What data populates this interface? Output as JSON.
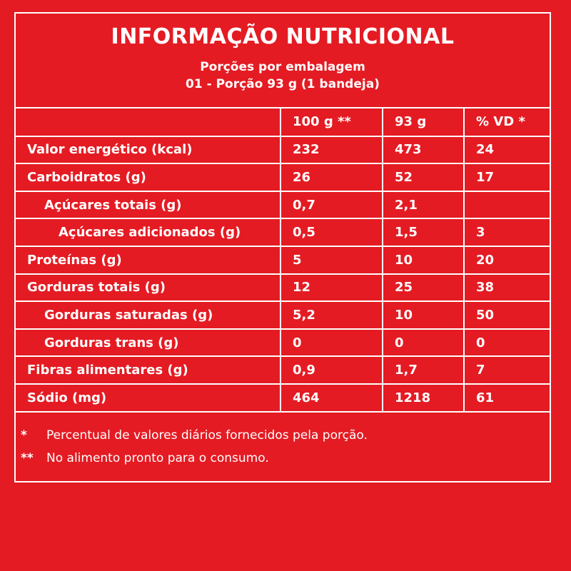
{
  "title": "INFORMAÇÃO NUTRICIONAL",
  "servings_line1": "Porções por embalagem",
  "servings_line2": "01 - Porção 93 g (1 bandeja)",
  "columns": [
    "",
    "100 g **",
    "93 g",
    "% VD *"
  ],
  "rows": [
    {
      "label": "Valor energético (kcal)",
      "level": 0,
      "per100": "232",
      "perPortion": "473",
      "vd": "24"
    },
    {
      "label": "Carboidratos (g)",
      "level": 0,
      "per100": "26",
      "perPortion": "52",
      "vd": "17"
    },
    {
      "label": "Açúcares totais (g)",
      "level": 1,
      "per100": "0,7",
      "perPortion": "2,1",
      "vd": ""
    },
    {
      "label": "Açúcares adicionados (g)",
      "level": 2,
      "per100": "0,5",
      "perPortion": "1,5",
      "vd": "3"
    },
    {
      "label": "Proteínas (g)",
      "level": 0,
      "per100": "5",
      "perPortion": "10",
      "vd": "20"
    },
    {
      "label": "Gorduras totais (g)",
      "level": 0,
      "per100": "12",
      "perPortion": "25",
      "vd": "38"
    },
    {
      "label": "Gorduras saturadas (g)",
      "level": 1,
      "per100": "5,2",
      "perPortion": "10",
      "vd": "50"
    },
    {
      "label": "Gorduras trans (g)",
      "level": 1,
      "per100": "0",
      "perPortion": "0",
      "vd": "0"
    },
    {
      "label": "Fibras alimentares (g)",
      "level": 0,
      "per100": "0,9",
      "perPortion": "1,7",
      "vd": "7"
    },
    {
      "label": "Sódio (mg)",
      "level": 0,
      "per100": "464",
      "perPortion": "1218",
      "vd": "61"
    }
  ],
  "footnotes": [
    {
      "mark": "*",
      "text": "Percentual de valores diários fornecidos pela porção."
    },
    {
      "mark": "**",
      "text": "No alimento pronto para o consumo."
    }
  ],
  "colors": {
    "background": "#e41b23",
    "foreground": "#ffffff"
  }
}
